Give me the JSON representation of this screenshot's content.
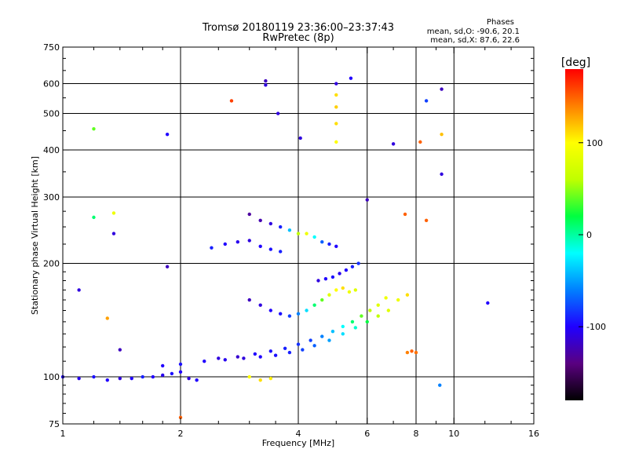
{
  "header": {
    "title_line1": "Tromsø 20180119 23:36:00–23:37:43",
    "title_line2": "RwPretec (8p)",
    "stats_title": "Phases",
    "stats_o": "mean, sd,O: -90.6, 20.1",
    "stats_x": "mean, sd,X:  87.6, 22.6"
  },
  "chart_data": {
    "type": "scatter",
    "title": "Tromsø 20180119 23:36:00–23:37:43",
    "subtitle": "RwPretec (8p)",
    "xlabel": "Frequency [MHz]",
    "ylabel": "Stationary phase Virtual Height [km]",
    "x_scale": "log",
    "y_scale": "log",
    "xlim": [
      1,
      16
    ],
    "ylim": [
      75,
      750
    ],
    "x_ticks": [
      1,
      2,
      4,
      6,
      8,
      10,
      16
    ],
    "y_ticks": [
      75,
      100,
      200,
      300,
      400,
      500,
      600,
      750
    ],
    "grid": true,
    "colorbar": {
      "label": "[deg]",
      "range": [
        -180,
        180
      ],
      "ticks": [
        100,
        0,
        -100
      ],
      "colors": [
        "#000000",
        "#5a0080",
        "#2000ff",
        "#0080ff",
        "#00ffff",
        "#00ff40",
        "#c0ff00",
        "#ffff00",
        "#ff8000",
        "#ff0000"
      ]
    },
    "traces": [
      {
        "name": "",
        "points": [
          [
            1.0,
            100,
            -100
          ],
          [
            1.1,
            99,
            -105
          ],
          [
            1.2,
            100,
            -95
          ],
          [
            1.3,
            98,
            -100
          ],
          [
            1.4,
            99,
            -110
          ],
          [
            1.5,
            99,
            -100
          ],
          [
            1.6,
            100,
            -90
          ],
          [
            1.7,
            100,
            -100
          ],
          [
            1.8,
            101,
            -105
          ],
          [
            1.9,
            102,
            -95
          ],
          [
            2.0,
            103,
            -100
          ],
          [
            2.1,
            99,
            -110
          ],
          [
            2.2,
            98,
            -100
          ]
        ]
      },
      {
        "name": "",
        "points": [
          [
            1.8,
            107,
            -100
          ],
          [
            2.0,
            108,
            -95
          ],
          [
            2.3,
            110,
            -100
          ],
          [
            2.6,
            111,
            -105
          ],
          [
            2.9,
            112,
            -110
          ],
          [
            3.2,
            113,
            -100
          ],
          [
            3.5,
            114,
            -95
          ],
          [
            3.8,
            116,
            -90
          ],
          [
            4.1,
            118,
            -80
          ],
          [
            4.4,
            121,
            -70
          ],
          [
            4.8,
            125,
            -50
          ],
          [
            5.2,
            130,
            -30
          ],
          [
            5.6,
            135,
            -10
          ],
          [
            6.0,
            140,
            20
          ],
          [
            6.4,
            145,
            60
          ],
          [
            6.8,
            150,
            80
          ],
          [
            7.2,
            160,
            90
          ],
          [
            7.6,
            165,
            110
          ]
        ]
      },
      {
        "name": "",
        "points": [
          [
            2.5,
            112,
            -110
          ],
          [
            2.8,
            113,
            -115
          ],
          [
            3.1,
            115,
            -100
          ],
          [
            3.4,
            117,
            -95
          ],
          [
            3.7,
            119,
            -90
          ],
          [
            4.0,
            122,
            -85
          ],
          [
            4.3,
            125,
            -80
          ],
          [
            4.6,
            128,
            -60
          ],
          [
            4.9,
            132,
            -40
          ],
          [
            5.2,
            136,
            -20
          ],
          [
            5.5,
            140,
            10
          ],
          [
            5.8,
            145,
            40
          ],
          [
            6.1,
            150,
            60
          ],
          [
            6.4,
            155,
            80
          ],
          [
            6.7,
            162,
            90
          ]
        ]
      },
      {
        "name": "",
        "points": [
          [
            3.0,
            160,
            -120
          ],
          [
            3.2,
            155,
            -110
          ],
          [
            3.4,
            150,
            -100
          ],
          [
            3.6,
            147,
            -95
          ],
          [
            3.8,
            145,
            -80
          ],
          [
            4.0,
            147,
            -60
          ],
          [
            4.2,
            150,
            -30
          ],
          [
            4.4,
            155,
            10
          ],
          [
            4.6,
            160,
            40
          ],
          [
            4.8,
            165,
            80
          ],
          [
            5.0,
            170,
            100
          ],
          [
            5.2,
            172,
            110
          ],
          [
            5.4,
            168,
            90
          ],
          [
            5.6,
            170,
            80
          ]
        ]
      },
      {
        "name": "",
        "points": [
          [
            3.0,
            270,
            -130
          ],
          [
            3.2,
            260,
            -125
          ],
          [
            3.4,
            255,
            -110
          ],
          [
            3.6,
            250,
            -90
          ],
          [
            3.8,
            245,
            -40
          ],
          [
            4.0,
            240,
            60
          ],
          [
            4.2,
            240,
            90
          ],
          [
            4.4,
            235,
            -20
          ],
          [
            4.6,
            228,
            -70
          ],
          [
            4.8,
            225,
            -90
          ],
          [
            5.0,
            222,
            -100
          ]
        ]
      },
      {
        "name": "",
        "points": [
          [
            4.5,
            180,
            -110
          ],
          [
            4.7,
            182,
            -100
          ],
          [
            4.9,
            184,
            -95
          ],
          [
            5.1,
            188,
            -105
          ],
          [
            5.3,
            192,
            -100
          ],
          [
            5.5,
            196,
            -90
          ],
          [
            5.7,
            200,
            -85
          ]
        ]
      },
      {
        "name": "",
        "points": [
          [
            2.4,
            220,
            -90
          ],
          [
            2.6,
            225,
            -100
          ],
          [
            2.8,
            228,
            -105
          ],
          [
            3.0,
            230,
            -110
          ],
          [
            3.2,
            222,
            -100
          ],
          [
            3.4,
            218,
            -95
          ],
          [
            3.6,
            215,
            -90
          ]
        ]
      },
      {
        "name": "",
        "points": [
          [
            5.0,
            420,
            100
          ],
          [
            5.0,
            470,
            110
          ],
          [
            5.0,
            520,
            115
          ],
          [
            5.0,
            560,
            110
          ],
          [
            5.0,
            600,
            -110
          ]
        ]
      },
      {
        "name": "",
        "points": [
          [
            3.0,
            100,
            100
          ],
          [
            3.2,
            98,
            110
          ],
          [
            3.4,
            99,
            105
          ],
          [
            7.6,
            116,
            140
          ],
          [
            7.8,
            117,
            150
          ],
          [
            8.0,
            116,
            145
          ]
        ]
      },
      {
        "name": "",
        "points": [
          [
            1.2,
            455,
            40
          ],
          [
            1.2,
            265,
            10
          ],
          [
            1.35,
            272,
            90
          ],
          [
            1.35,
            240,
            -110
          ],
          [
            1.85,
            440,
            -100
          ],
          [
            1.85,
            196,
            -120
          ],
          [
            2.7,
            540,
            160
          ],
          [
            3.3,
            610,
            -120
          ],
          [
            3.3,
            595,
            -110
          ],
          [
            3.55,
            500,
            -110
          ],
          [
            4.05,
            430,
            -110
          ],
          [
            5.45,
            620,
            -100
          ],
          [
            7.0,
            415,
            -110
          ],
          [
            8.2,
            420,
            150
          ],
          [
            8.5,
            540,
            -80
          ],
          [
            9.3,
            580,
            -120
          ],
          [
            9.3,
            440,
            120
          ],
          [
            9.3,
            345,
            -110
          ],
          [
            9.2,
            95,
            -60
          ],
          [
            12.2,
            157,
            -100
          ],
          [
            1.1,
            170,
            -110
          ],
          [
            1.3,
            143,
            130
          ],
          [
            1.4,
            118,
            -120
          ],
          [
            2.0,
            78,
            150
          ],
          [
            6.0,
            295,
            -120
          ],
          [
            7.5,
            270,
            150
          ],
          [
            8.5,
            260,
            150
          ]
        ]
      }
    ]
  }
}
